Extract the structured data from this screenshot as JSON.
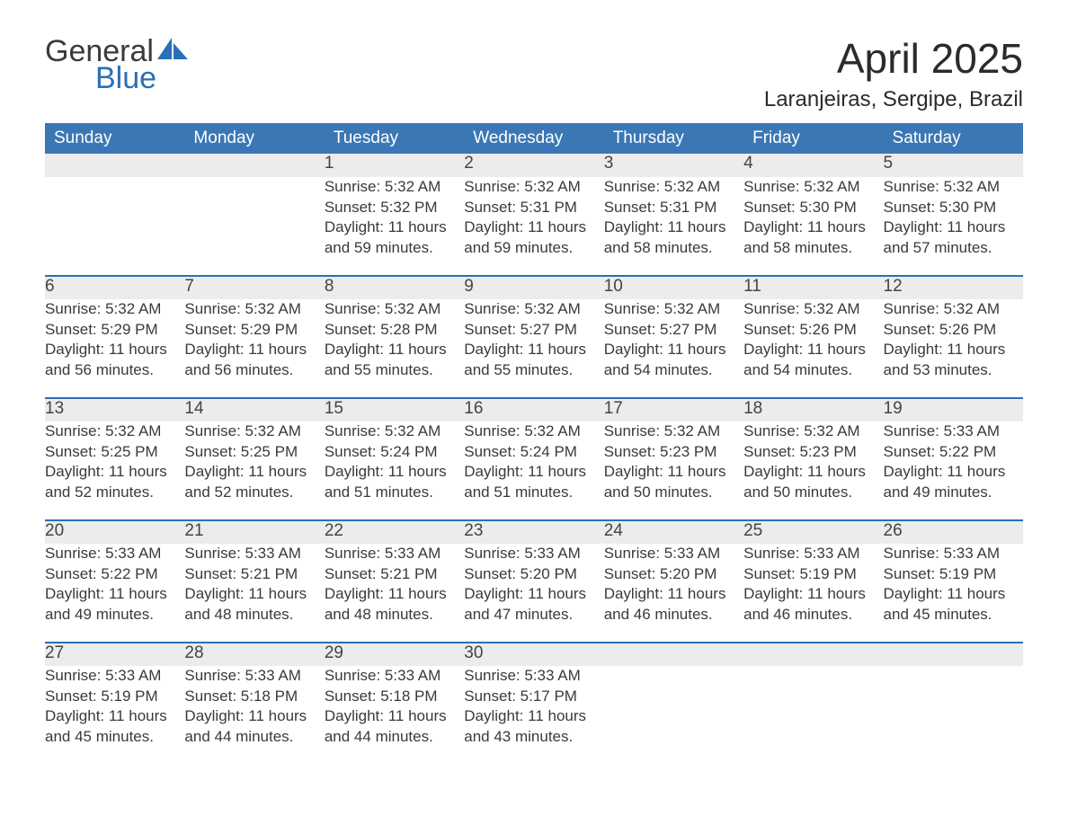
{
  "brand": {
    "line1": "General",
    "line2": "Blue"
  },
  "header": {
    "month_title": "April 2025",
    "location": "Laranjeiras, Sergipe, Brazil"
  },
  "colors": {
    "header_blue": "#3b77b5",
    "accent_blue": "#2a70b8",
    "row_gray": "#ececec",
    "background": "#ffffff",
    "text": "#3a3a3a"
  },
  "calendar": {
    "columns": [
      "Sunday",
      "Monday",
      "Tuesday",
      "Wednesday",
      "Thursday",
      "Friday",
      "Saturday"
    ],
    "start_day_index": 2,
    "days": [
      {
        "n": 1,
        "sunrise": "5:32 AM",
        "sunset": "5:32 PM",
        "daylight": "11 hours and 59 minutes."
      },
      {
        "n": 2,
        "sunrise": "5:32 AM",
        "sunset": "5:31 PM",
        "daylight": "11 hours and 59 minutes."
      },
      {
        "n": 3,
        "sunrise": "5:32 AM",
        "sunset": "5:31 PM",
        "daylight": "11 hours and 58 minutes."
      },
      {
        "n": 4,
        "sunrise": "5:32 AM",
        "sunset": "5:30 PM",
        "daylight": "11 hours and 58 minutes."
      },
      {
        "n": 5,
        "sunrise": "5:32 AM",
        "sunset": "5:30 PM",
        "daylight": "11 hours and 57 minutes."
      },
      {
        "n": 6,
        "sunrise": "5:32 AM",
        "sunset": "5:29 PM",
        "daylight": "11 hours and 56 minutes."
      },
      {
        "n": 7,
        "sunrise": "5:32 AM",
        "sunset": "5:29 PM",
        "daylight": "11 hours and 56 minutes."
      },
      {
        "n": 8,
        "sunrise": "5:32 AM",
        "sunset": "5:28 PM",
        "daylight": "11 hours and 55 minutes."
      },
      {
        "n": 9,
        "sunrise": "5:32 AM",
        "sunset": "5:27 PM",
        "daylight": "11 hours and 55 minutes."
      },
      {
        "n": 10,
        "sunrise": "5:32 AM",
        "sunset": "5:27 PM",
        "daylight": "11 hours and 54 minutes."
      },
      {
        "n": 11,
        "sunrise": "5:32 AM",
        "sunset": "5:26 PM",
        "daylight": "11 hours and 54 minutes."
      },
      {
        "n": 12,
        "sunrise": "5:32 AM",
        "sunset": "5:26 PM",
        "daylight": "11 hours and 53 minutes."
      },
      {
        "n": 13,
        "sunrise": "5:32 AM",
        "sunset": "5:25 PM",
        "daylight": "11 hours and 52 minutes."
      },
      {
        "n": 14,
        "sunrise": "5:32 AM",
        "sunset": "5:25 PM",
        "daylight": "11 hours and 52 minutes."
      },
      {
        "n": 15,
        "sunrise": "5:32 AM",
        "sunset": "5:24 PM",
        "daylight": "11 hours and 51 minutes."
      },
      {
        "n": 16,
        "sunrise": "5:32 AM",
        "sunset": "5:24 PM",
        "daylight": "11 hours and 51 minutes."
      },
      {
        "n": 17,
        "sunrise": "5:32 AM",
        "sunset": "5:23 PM",
        "daylight": "11 hours and 50 minutes."
      },
      {
        "n": 18,
        "sunrise": "5:32 AM",
        "sunset": "5:23 PM",
        "daylight": "11 hours and 50 minutes."
      },
      {
        "n": 19,
        "sunrise": "5:33 AM",
        "sunset": "5:22 PM",
        "daylight": "11 hours and 49 minutes."
      },
      {
        "n": 20,
        "sunrise": "5:33 AM",
        "sunset": "5:22 PM",
        "daylight": "11 hours and 49 minutes."
      },
      {
        "n": 21,
        "sunrise": "5:33 AM",
        "sunset": "5:21 PM",
        "daylight": "11 hours and 48 minutes."
      },
      {
        "n": 22,
        "sunrise": "5:33 AM",
        "sunset": "5:21 PM",
        "daylight": "11 hours and 48 minutes."
      },
      {
        "n": 23,
        "sunrise": "5:33 AM",
        "sunset": "5:20 PM",
        "daylight": "11 hours and 47 minutes."
      },
      {
        "n": 24,
        "sunrise": "5:33 AM",
        "sunset": "5:20 PM",
        "daylight": "11 hours and 46 minutes."
      },
      {
        "n": 25,
        "sunrise": "5:33 AM",
        "sunset": "5:19 PM",
        "daylight": "11 hours and 46 minutes."
      },
      {
        "n": 26,
        "sunrise": "5:33 AM",
        "sunset": "5:19 PM",
        "daylight": "11 hours and 45 minutes."
      },
      {
        "n": 27,
        "sunrise": "5:33 AM",
        "sunset": "5:19 PM",
        "daylight": "11 hours and 45 minutes."
      },
      {
        "n": 28,
        "sunrise": "5:33 AM",
        "sunset": "5:18 PM",
        "daylight": "11 hours and 44 minutes."
      },
      {
        "n": 29,
        "sunrise": "5:33 AM",
        "sunset": "5:18 PM",
        "daylight": "11 hours and 44 minutes."
      },
      {
        "n": 30,
        "sunrise": "5:33 AM",
        "sunset": "5:17 PM",
        "daylight": "11 hours and 43 minutes."
      }
    ],
    "labels": {
      "sunrise": "Sunrise:",
      "sunset": "Sunset:",
      "daylight": "Daylight:"
    }
  }
}
